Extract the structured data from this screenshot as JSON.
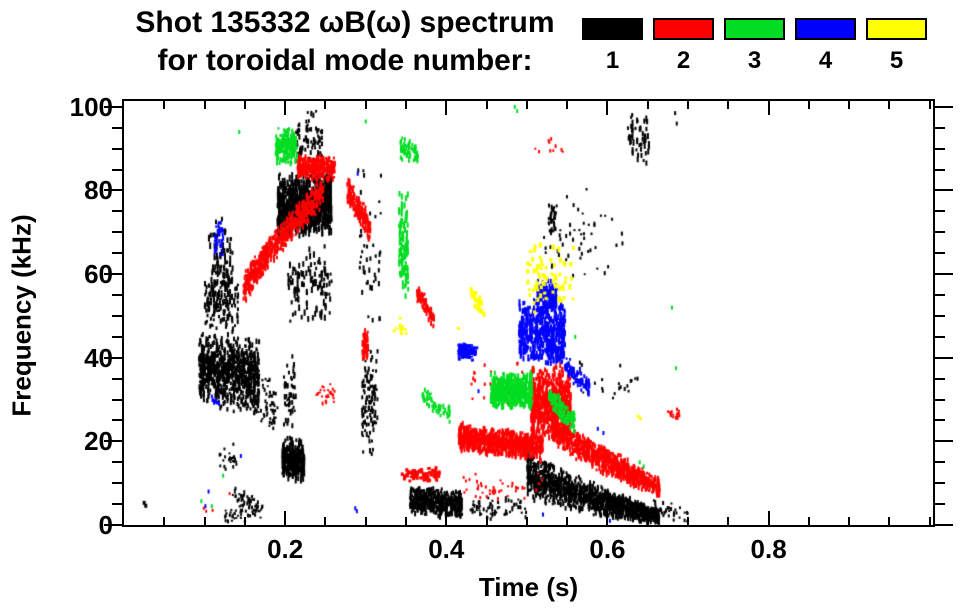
{
  "header": {
    "title_line1": "Shot 135332 ωB(ω) spectrum",
    "title_line2": "for toroidal mode number:",
    "legend": {
      "modes": [
        {
          "label": "1",
          "color": "#000000"
        },
        {
          "label": "2",
          "color": "#ff0000"
        },
        {
          "label": "3",
          "color": "#00dd22"
        },
        {
          "label": "4",
          "color": "#0000ff"
        },
        {
          "label": "5",
          "color": "#ffff00"
        }
      ]
    }
  },
  "chart_data": {
    "type": "scatter",
    "title": "Shot 135332 ωB(ω) spectrum for toroidal mode number:",
    "xlabel": "Time (s)",
    "ylabel": "Frequency (kHz)",
    "xlim": [
      0,
      1.004
    ],
    "ylim": [
      0,
      101.4
    ],
    "grid": false,
    "legend_position": "top-right",
    "x_major_ticks": [
      0.2,
      0.4,
      0.6,
      0.8
    ],
    "x_tick_labels": [
      "0.2",
      "0.4",
      "0.6",
      "0.8"
    ],
    "x_minor_step": 0.05,
    "y_major_ticks": [
      0,
      20,
      40,
      60,
      80,
      100
    ],
    "y_tick_labels": [
      "0",
      "20",
      "40",
      "60",
      "80",
      "100"
    ],
    "y_minor_step": 5,
    "series_colors": {
      "1": "#000000",
      "2": "#ff0000",
      "3": "#00dd22",
      "4": "#0000ff",
      "5": "#ffff00"
    },
    "units": {
      "t": "s",
      "f": "kHz"
    },
    "clusters": [
      {
        "mode": 1,
        "t": [
          0.093,
          0.168
        ],
        "f": [
          37,
          36
        ],
        "spread": 9.5,
        "n": 900,
        "dot": [
          2,
          4
        ],
        "cols": 18
      },
      {
        "mode": 1,
        "t": [
          0.1,
          0.142
        ],
        "f": [
          53,
          53
        ],
        "spread": 7,
        "n": 130,
        "dot": [
          2,
          4
        ],
        "cols": 9
      },
      {
        "mode": 1,
        "t": [
          0.105,
          0.135
        ],
        "f": [
          61,
          61
        ],
        "spread": 13,
        "n": 110,
        "dot": [
          2,
          5
        ],
        "cols": 7
      },
      {
        "mode": 1,
        "t": [
          0.16,
          0.192
        ],
        "f": [
          31,
          27
        ],
        "spread": 7,
        "n": 70,
        "dot": [
          2,
          3
        ]
      },
      {
        "mode": 1,
        "t": [
          0.118,
          0.14
        ],
        "f": [
          16,
          16
        ],
        "spread": 4,
        "n": 22,
        "dot": [
          2,
          3
        ]
      },
      {
        "mode": 1,
        "t": [
          0.135,
          0.172
        ],
        "f": [
          8,
          4
        ],
        "spread": 3,
        "n": 55,
        "dot": [
          2,
          3
        ]
      },
      {
        "mode": 1,
        "t": [
          0.125,
          0.165
        ],
        "f": [
          2.5,
          2.5
        ],
        "spread": 2.5,
        "n": 35,
        "dot": [
          2,
          3
        ]
      },
      {
        "mode": 1,
        "pts": [
          [
            0.025,
            5.3
          ],
          [
            0.027,
            4.6
          ]
        ],
        "dot": [
          3,
          4
        ]
      },
      {
        "mode": 1,
        "t": [
          0.19,
          0.258
        ],
        "f": [
          76,
          77
        ],
        "spread": 8,
        "n": 760,
        "dot": [
          2,
          6
        ],
        "cols": 14
      },
      {
        "mode": 1,
        "t": [
          0.212,
          0.246
        ],
        "f": [
          92,
          92
        ],
        "spread": 7.5,
        "n": 85,
        "dot": [
          2,
          4
        ],
        "cols": 8
      },
      {
        "mode": 1,
        "t": [
          0.203,
          0.258
        ],
        "f": [
          58,
          58
        ],
        "spread": 10,
        "n": 120,
        "dot": [
          2,
          5
        ],
        "cols": 10
      },
      {
        "mode": 1,
        "t": [
          0.196,
          0.224
        ],
        "f": [
          16,
          15
        ],
        "spread": 5.5,
        "n": 300,
        "dot": [
          2,
          5
        ],
        "cols": 6
      },
      {
        "mode": 1,
        "t": [
          0.198,
          0.214
        ],
        "f": [
          32,
          32
        ],
        "spread": 10,
        "n": 50,
        "dot": [
          2,
          4
        ],
        "cols": 4
      },
      {
        "mode": 1,
        "t": [
          0.295,
          0.315
        ],
        "f": [
          30,
          30
        ],
        "spread": 15,
        "n": 110,
        "dot": [
          2,
          4
        ],
        "cols": 4
      },
      {
        "mode": 1,
        "t": [
          0.29,
          0.32
        ],
        "f": [
          68,
          68
        ],
        "spread": 22,
        "n": 45,
        "dot": [
          2,
          4
        ],
        "cols": 5
      },
      {
        "mode": 1,
        "t": [
          0.355,
          0.42
        ],
        "f": [
          6,
          5
        ],
        "spread": 3.5,
        "n": 470,
        "dot": [
          2,
          4
        ],
        "cols": 12
      },
      {
        "mode": 1,
        "t": [
          0.43,
          0.5
        ],
        "f": [
          4,
          4
        ],
        "spread": 3,
        "n": 70,
        "dot": [
          2,
          3
        ]
      },
      {
        "mode": 1,
        "t": [
          0.5,
          0.665
        ],
        "f": [
          13,
          2
        ],
        "spread": [
          6,
          2
        ],
        "n": 1300,
        "dot": [
          2,
          4
        ],
        "cols": 26,
        "curve": 0.7
      },
      {
        "mode": 1,
        "t": [
          0.52,
          0.62
        ],
        "f": [
          70,
          70
        ],
        "spread": 13,
        "n": 55,
        "dot": [
          2,
          3
        ]
      },
      {
        "mode": 1,
        "t": [
          0.527,
          0.537
        ],
        "f": [
          73,
          73
        ],
        "spread": 5,
        "n": 30,
        "dot": [
          2,
          4
        ]
      },
      {
        "mode": 1,
        "t": [
          0.625,
          0.652
        ],
        "f": [
          92,
          92
        ],
        "spread": 7,
        "n": 55,
        "dot": [
          2,
          5
        ],
        "cols": 3
      },
      {
        "mode": 1,
        "t": [
          0.56,
          0.64
        ],
        "f": [
          35,
          33
        ],
        "spread": 6,
        "n": 22,
        "dot": [
          2,
          3
        ]
      },
      {
        "mode": 1,
        "t": [
          0.655,
          0.7
        ],
        "f": [
          4,
          3
        ],
        "spread": 3,
        "n": 30,
        "dot": [
          2,
          3
        ]
      },
      {
        "mode": 1,
        "pts": [
          [
            0.684,
            98.5
          ],
          [
            0.686,
            96
          ]
        ],
        "dot": [
          2,
          4
        ]
      },
      {
        "mode": 2,
        "t": [
          0.148,
          0.248
        ],
        "f": [
          56,
          80
        ],
        "spread": 4,
        "n": 620,
        "dot": [
          2,
          4
        ],
        "cols": 16,
        "curve": 0.85
      },
      {
        "mode": 2,
        "t": [
          0.215,
          0.262
        ],
        "f": [
          85.5,
          85.5
        ],
        "spread": 3,
        "n": 300,
        "dot": [
          2,
          4
        ],
        "cols": 8
      },
      {
        "mode": 2,
        "t": [
          0.277,
          0.306
        ],
        "f": [
          80,
          71
        ],
        "spread": 3.5,
        "n": 190,
        "dot": [
          2,
          4
        ],
        "cols": 5
      },
      {
        "mode": 2,
        "t": [
          0.296,
          0.303
        ],
        "f": [
          43,
          43
        ],
        "spread": 4,
        "n": 55,
        "dot": [
          2,
          4
        ]
      },
      {
        "mode": 2,
        "t": [
          0.238,
          0.262
        ],
        "f": [
          31.5,
          31.5
        ],
        "spread": 2.5,
        "n": 28,
        "dot": [
          2,
          3
        ]
      },
      {
        "mode": 2,
        "t": [
          0.363,
          0.385
        ],
        "f": [
          56,
          49
        ],
        "spread": 2.5,
        "n": 80,
        "dot": [
          2,
          4
        ]
      },
      {
        "mode": 2,
        "t": [
          0.345,
          0.392
        ],
        "f": [
          12,
          12
        ],
        "spread": 1.8,
        "n": 90,
        "dot": [
          3,
          3
        ]
      },
      {
        "mode": 2,
        "t": [
          0.415,
          0.52
        ],
        "f": [
          21,
          18.5
        ],
        "spread": 3.5,
        "n": 700,
        "dot": [
          2,
          5
        ],
        "cols": 18
      },
      {
        "mode": 2,
        "t": [
          0.505,
          0.555
        ],
        "f": [
          29,
          29
        ],
        "spread": 9.5,
        "n": 620,
        "dot": [
          2,
          5
        ],
        "cols": 8
      },
      {
        "mode": 2,
        "t": [
          0.53,
          0.665
        ],
        "f": [
          24,
          9
        ],
        "spread": [
          4.5,
          2.5
        ],
        "n": 900,
        "dot": [
          2,
          4
        ],
        "cols": 22,
        "curve": 0.8
      },
      {
        "mode": 2,
        "t": [
          0.51,
          0.545
        ],
        "f": [
          91,
          91
        ],
        "spread": 2.5,
        "n": 10,
        "dot": [
          2,
          3
        ]
      },
      {
        "mode": 2,
        "t": [
          0.675,
          0.69
        ],
        "f": [
          27,
          26.5
        ],
        "spread": 1.5,
        "n": 16,
        "dot": [
          2,
          3
        ]
      },
      {
        "mode": 2,
        "t": [
          0.43,
          0.5
        ],
        "f": [
          34,
          34
        ],
        "spread": 6,
        "n": 26,
        "dot": [
          2,
          3
        ]
      },
      {
        "mode": 2,
        "t": [
          0.42,
          0.52
        ],
        "f": [
          9,
          9
        ],
        "spread": 3.5,
        "n": 45,
        "dot": [
          2,
          3
        ]
      },
      {
        "mode": 2,
        "pts": [
          [
            0.099,
            4
          ],
          [
            0.102,
            3.3
          ],
          [
            0.11,
            3.5
          ],
          [
            0.131,
            7.5
          ]
        ],
        "dot": [
          2,
          3
        ]
      },
      {
        "mode": 3,
        "t": [
          0.188,
          0.215
        ],
        "f": [
          90.5,
          90.5
        ],
        "spread": 4.5,
        "n": 210,
        "dot": [
          2,
          4
        ],
        "cols": 6
      },
      {
        "mode": 3,
        "t": [
          0.343,
          0.365
        ],
        "f": [
          90,
          89
        ],
        "spread": 3,
        "n": 60,
        "dot": [
          2,
          4
        ]
      },
      {
        "mode": 3,
        "t": [
          0.341,
          0.353
        ],
        "f": [
          67,
          67
        ],
        "spread": 13,
        "n": 120,
        "dot": [
          2,
          5
        ],
        "cols": 2
      },
      {
        "mode": 3,
        "t": [
          0.37,
          0.405
        ],
        "f": [
          31,
          26
        ],
        "spread": 2.5,
        "n": 60,
        "dot": [
          2,
          4
        ]
      },
      {
        "mode": 3,
        "t": [
          0.455,
          0.507
        ],
        "f": [
          32,
          32
        ],
        "spread": 4.5,
        "n": 480,
        "dot": [
          2,
          5
        ],
        "cols": 9
      },
      {
        "mode": 3,
        "t": [
          0.527,
          0.56
        ],
        "f": [
          31,
          24
        ],
        "spread": 2.8,
        "n": 150,
        "dot": [
          2,
          4
        ],
        "cols": 6
      },
      {
        "mode": 3,
        "pts": [
          [
            0.143,
            94
          ],
          [
            0.096,
            5.7
          ],
          [
            0.109,
            4.5
          ],
          [
            0.123,
            11.8
          ],
          [
            0.485,
            100
          ],
          [
            0.488,
            99
          ],
          [
            0.3,
            96.5
          ],
          [
            0.64,
            15
          ],
          [
            0.645,
            14
          ],
          [
            0.685,
            37.5
          ],
          [
            0.68,
            52
          ],
          [
            0.56,
            45
          ]
        ],
        "dot": [
          2,
          4
        ]
      },
      {
        "mode": 4,
        "t": [
          0.112,
          0.123
        ],
        "f": [
          68.5,
          68.5
        ],
        "spread": 4.5,
        "n": 40,
        "dot": [
          2,
          4
        ]
      },
      {
        "mode": 4,
        "t": [
          0.108,
          0.118
        ],
        "f": [
          30,
          30
        ],
        "spread": 2.5,
        "n": 12,
        "dot": [
          2,
          3
        ]
      },
      {
        "mode": 4,
        "t": [
          0.415,
          0.438
        ],
        "f": [
          41.5,
          41.5
        ],
        "spread": 2.3,
        "n": 80,
        "dot": [
          3,
          3
        ]
      },
      {
        "mode": 4,
        "t": [
          0.49,
          0.548
        ],
        "f": [
          46,
          46
        ],
        "spread": 8,
        "n": 470,
        "dot": [
          2,
          5
        ],
        "cols": 9
      },
      {
        "mode": 4,
        "t": [
          0.512,
          0.537
        ],
        "f": [
          55,
          55
        ],
        "spread": 4,
        "n": 120,
        "dot": [
          2,
          5
        ]
      },
      {
        "mode": 4,
        "t": [
          0.528,
          0.578
        ],
        "f": [
          43,
          32
        ],
        "spread": 2.8,
        "n": 140,
        "dot": [
          2,
          4
        ],
        "cols": 8
      },
      {
        "mode": 4,
        "pts": [
          [
            0.287,
            4
          ],
          [
            0.289,
            3.3
          ],
          [
            0.145,
            16.5
          ],
          [
            0.44,
            32
          ],
          [
            0.52,
            2.5
          ],
          [
            0.588,
            23
          ],
          [
            0.595,
            22
          ],
          [
            0.603,
            1
          ],
          [
            0.105,
            8
          ],
          [
            0.101,
            4.5
          ],
          [
            0.29,
            84
          ]
        ],
        "dot": [
          2,
          4
        ]
      },
      {
        "mode": 5,
        "t": [
          0.5,
          0.558
        ],
        "f": [
          59,
          59
        ],
        "spread": 9,
        "n": 75,
        "dot": [
          3,
          4
        ]
      },
      {
        "mode": 5,
        "t": [
          0.43,
          0.447
        ],
        "f": [
          56,
          51
        ],
        "spread": 2.2,
        "n": 28,
        "dot": [
          3,
          4
        ]
      },
      {
        "mode": 5,
        "t": [
          0.335,
          0.352
        ],
        "f": [
          47.5,
          47.5
        ],
        "spread": 2,
        "n": 12,
        "dot": [
          3,
          3
        ]
      },
      {
        "mode": 5,
        "pts": [
          [
            0.638,
            26
          ],
          [
            0.641,
            25.5
          ],
          [
            0.415,
            47
          ]
        ],
        "dot": [
          3,
          3
        ]
      }
    ]
  }
}
